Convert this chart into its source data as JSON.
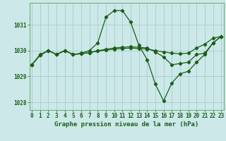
{
  "title": "Graphe pression niveau de la mer (hPa)",
  "xlabel_hours": [
    0,
    1,
    2,
    3,
    4,
    5,
    6,
    7,
    8,
    9,
    10,
    11,
    12,
    13,
    14,
    15,
    16,
    17,
    18,
    19,
    20,
    21,
    22,
    23
  ],
  "line1_y": [
    1029.45,
    1029.85,
    1030.0,
    1029.85,
    1030.0,
    1029.85,
    1029.9,
    1030.0,
    1030.3,
    1031.3,
    1031.55,
    1031.55,
    1031.1,
    1030.2,
    1029.65,
    1028.7,
    1028.05,
    1028.75,
    1029.1,
    1029.2,
    1029.55,
    1029.85,
    1030.3,
    1030.55
  ],
  "line2_y": [
    1029.45,
    1029.82,
    1030.0,
    1029.85,
    1030.0,
    1029.85,
    1029.88,
    1029.92,
    1030.0,
    1030.05,
    1030.1,
    1030.13,
    1030.15,
    1030.13,
    1030.1,
    1029.95,
    1029.75,
    1029.45,
    1029.5,
    1029.55,
    1029.85,
    1029.9,
    1030.3,
    1030.55
  ],
  "line3_y": [
    1029.45,
    1029.82,
    1030.0,
    1029.85,
    1030.0,
    1029.85,
    1029.88,
    1029.92,
    1029.98,
    1030.02,
    1030.06,
    1030.08,
    1030.1,
    1030.08,
    1030.06,
    1030.0,
    1029.95,
    1029.9,
    1029.88,
    1029.9,
    1030.1,
    1030.25,
    1030.48,
    1030.55
  ],
  "ylim": [
    1027.7,
    1031.85
  ],
  "yticks": [
    1028,
    1029,
    1030,
    1031
  ],
  "bg_color": "#cce8e8",
  "grid_color": "#aacccc",
  "line_color": "#1a5e1a",
  "text_color": "#1a5e1a",
  "spine_color": "#6aaa6a",
  "title_fontsize": 6.5,
  "tick_fontsize": 5.5
}
